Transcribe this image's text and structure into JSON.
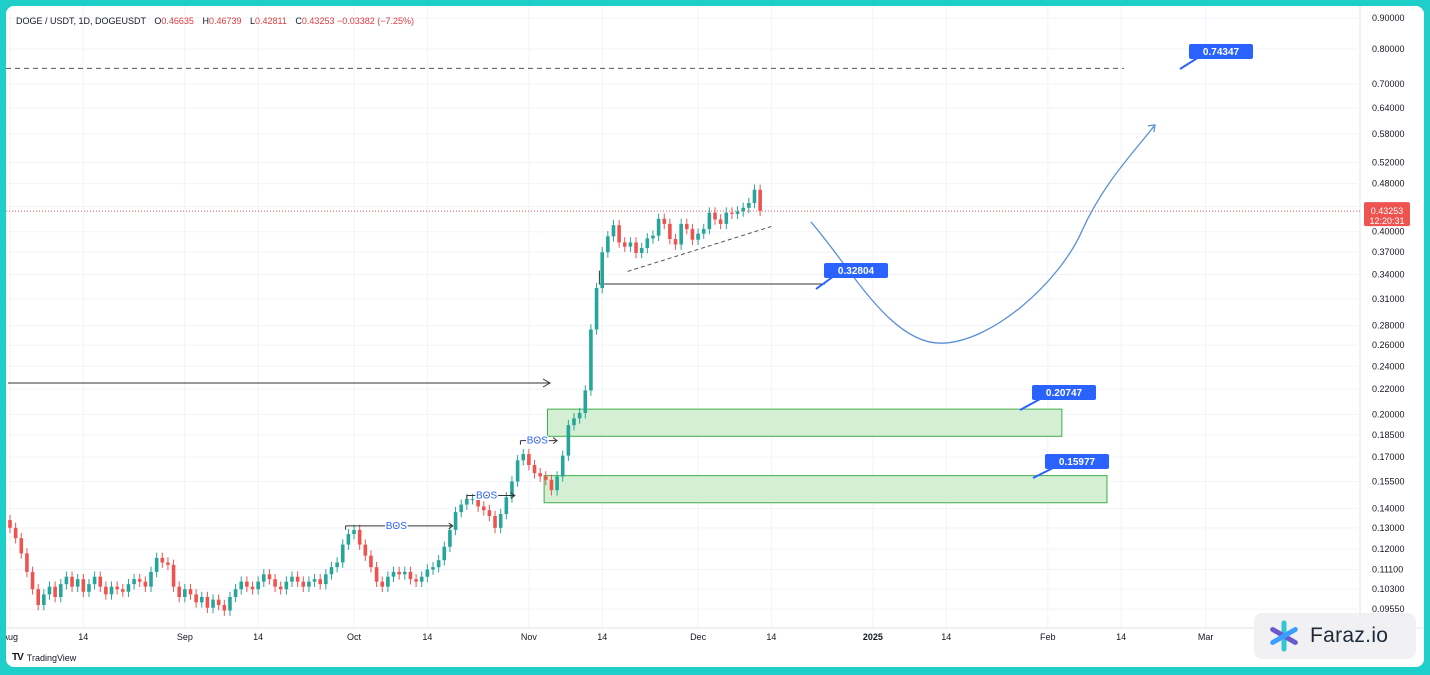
{
  "legend": {
    "symbol": "DOGE / USDT, 1D, DOGEUSDT",
    "open_label": "O",
    "open": "0.46635",
    "high_label": "H",
    "high": "0.46739",
    "low_label": "L",
    "low": "0.42811",
    "close_label": "C",
    "close": "0.43253",
    "change": "−0.03382 (−7.25%)"
  },
  "price_badge": {
    "price": "0.43253",
    "countdown": "12:20:31"
  },
  "brand": {
    "name": "TradingView",
    "logo": "TV"
  },
  "watermark": {
    "text": "Faraz.io"
  },
  "colors": {
    "up": "#26a69a",
    "down": "#ef5350",
    "zone_fill": "#d4efd4",
    "zone_stroke": "#3fae4a",
    "label_bg": "#2962ff",
    "projection": "#5b8fd6",
    "dashed": "#555555"
  },
  "chart_data": {
    "type": "candlestick",
    "title": "DOGE / USDT, 1D, DOGEUSDT",
    "y_scale": "log",
    "y_ticks": [
      "0.90000",
      "0.80000",
      "0.70000",
      "0.64000",
      "0.58000",
      "0.52000",
      "0.48000",
      "0.44000",
      "0.40000",
      "0.37000",
      "0.34000",
      "0.31000",
      "0.28000",
      "0.26000",
      "0.24000",
      "0.22000",
      "0.20000",
      "0.18500",
      "0.17000",
      "0.15500",
      "0.14000",
      "0.13000",
      "0.12000",
      "0.11100",
      "0.10300",
      "0.09550"
    ],
    "x_ticks": [
      "Aug",
      "14",
      "Sep",
      "14",
      "Oct",
      "14",
      "Nov",
      "14",
      "Dec",
      "14",
      "2025",
      "14",
      "Feb",
      "14",
      "Mar"
    ],
    "last_price": 0.43253,
    "closes": [
      0.13,
      0.125,
      0.118,
      0.11,
      0.103,
      0.097,
      0.101,
      0.104,
      0.1,
      0.105,
      0.108,
      0.104,
      0.107,
      0.102,
      0.105,
      0.108,
      0.104,
      0.101,
      0.104,
      0.103,
      0.102,
      0.105,
      0.107,
      0.106,
      0.104,
      0.11,
      0.116,
      0.114,
      0.113,
      0.104,
      0.1,
      0.103,
      0.101,
      0.098,
      0.1,
      0.096,
      0.099,
      0.097,
      0.095,
      0.1,
      0.103,
      0.106,
      0.104,
      0.103,
      0.106,
      0.109,
      0.107,
      0.104,
      0.103,
      0.106,
      0.108,
      0.106,
      0.104,
      0.106,
      0.107,
      0.105,
      0.109,
      0.112,
      0.114,
      0.122,
      0.127,
      0.129,
      0.122,
      0.117,
      0.112,
      0.106,
      0.104,
      0.108,
      0.11,
      0.109,
      0.11,
      0.107,
      0.106,
      0.108,
      0.111,
      0.112,
      0.115,
      0.121,
      0.129,
      0.138,
      0.142,
      0.145,
      0.145,
      0.141,
      0.139,
      0.136,
      0.13,
      0.137,
      0.146,
      0.155,
      0.168,
      0.172,
      0.165,
      0.16,
      0.158,
      0.156,
      0.15,
      0.158,
      0.171,
      0.192,
      0.197,
      0.201,
      0.219,
      0.276,
      0.323,
      0.37,
      0.393,
      0.41,
      0.384,
      0.378,
      0.384,
      0.369,
      0.376,
      0.39,
      0.394,
      0.42,
      0.412,
      0.389,
      0.381,
      0.412,
      0.404,
      0.388,
      0.397,
      0.404,
      0.43,
      0.419,
      0.412,
      0.43,
      0.428,
      0.432,
      0.438,
      0.446,
      0.469,
      0.433
    ],
    "levels": [
      {
        "label": "0.74347",
        "value": 0.74347,
        "style": "dashed"
      },
      {
        "label": "0.32804",
        "value": 0.32804,
        "style": "solid"
      }
    ],
    "zones": [
      {
        "label": "0.20747",
        "top": 0.204,
        "bottom": 0.184
      },
      {
        "label": "0.15977",
        "top": 0.1585,
        "bottom": 0.143
      }
    ],
    "annotations": [
      "BOS",
      "BOS",
      "BOS"
    ],
    "projection_path": [
      {
        "t": 142,
        "y": 0.415
      },
      {
        "t": 155,
        "y": 0.3
      },
      {
        "t": 165,
        "y": 0.262
      },
      {
        "t": 175,
        "y": 0.275
      },
      {
        "t": 190,
        "y": 0.4
      },
      {
        "t": 203,
        "y": 0.6
      }
    ]
  }
}
